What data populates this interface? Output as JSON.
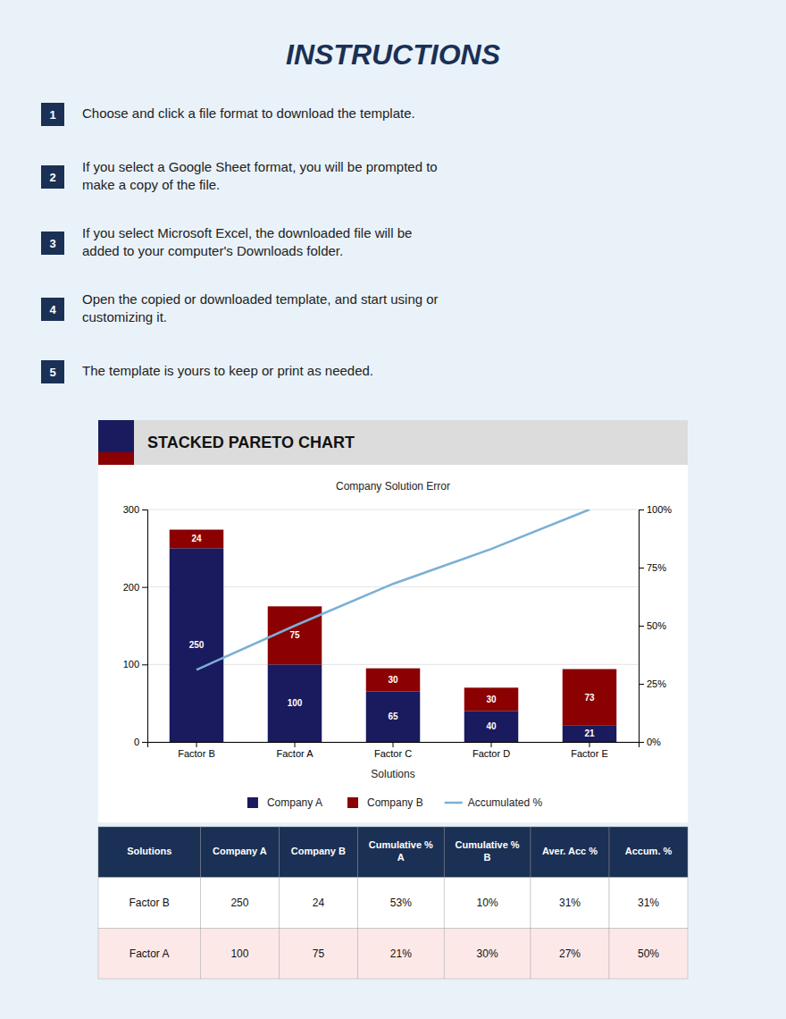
{
  "instructions": {
    "title": "INSTRUCTIONS",
    "numbers": [
      1,
      2,
      3,
      4,
      5
    ],
    "steps": [
      "Choose and click a file format to download the template.",
      "If you select a Google Sheet format, you will be prompted to\nmake a copy of the file.",
      "If you select Microsoft Excel, the downloaded file will be\nadded to your computer's Downloads folder.",
      "Open the copied or downloaded template, and start using or\ncustomizing it.",
      "The template is yours to keep or print as needed."
    ]
  },
  "chart_data": {
    "type": "bar",
    "title": "STACKED PARETO CHART",
    "subtitle": "Company Solution Error",
    "xlabel": "Solutions",
    "categories": [
      "Factor B",
      "Factor A",
      "Factor C",
      "Factor D",
      "Factor E"
    ],
    "series": [
      {
        "name": "Company A",
        "type": "bar",
        "color": "#1a1a5e",
        "values": [
          250,
          100,
          65,
          40,
          21
        ]
      },
      {
        "name": "Company B",
        "type": "bar",
        "color": "#8b0000",
        "values": [
          24,
          75,
          30,
          30,
          73
        ]
      },
      {
        "name": "Accumulated %",
        "type": "line",
        "axis": "y2",
        "color": "#7aafd4",
        "values": [
          31,
          50,
          68,
          83,
          100
        ]
      }
    ],
    "ylim": [
      0,
      300
    ],
    "yticks": [
      0,
      100,
      200,
      300
    ],
    "y2lim": [
      0,
      100
    ],
    "y2ticks": [
      {
        "value": 0,
        "label": "0%"
      },
      {
        "value": 25,
        "label": "25%"
      },
      {
        "value": 50,
        "label": "50%"
      },
      {
        "value": 75,
        "label": "75%"
      },
      {
        "value": 100,
        "label": "100%"
      }
    ],
    "stacked": true,
    "data_labels": true,
    "grid": true,
    "legend": "bottom"
  },
  "table": {
    "headers": [
      "Solutions",
      "Company A",
      "Company B",
      "Cumulative %\nA",
      "Cumulative %\nB",
      "Aver. Acc %",
      "Accum. %"
    ],
    "rows": [
      [
        "Factor B",
        "250",
        "24",
        "53%",
        "10%",
        "31%",
        "31%"
      ],
      [
        "Factor A",
        "100",
        "75",
        "21%",
        "30%",
        "27%",
        "50%"
      ]
    ]
  }
}
